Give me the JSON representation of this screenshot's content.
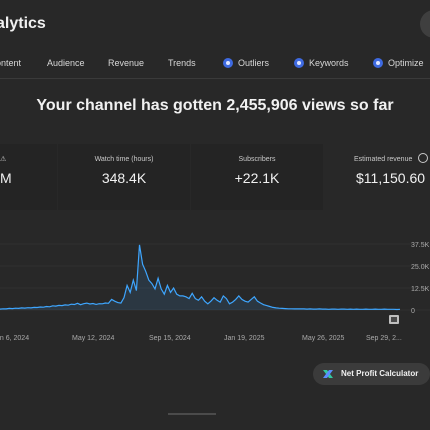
{
  "header": {
    "title": "alytics"
  },
  "tabs": [
    {
      "label": "ontent",
      "icon": ""
    },
    {
      "label": "Audience",
      "icon": ""
    },
    {
      "label": "Revenue",
      "icon": ""
    },
    {
      "label": "Trends",
      "icon": ""
    },
    {
      "label": "Outliers",
      "icon": "extension-dot-icon"
    },
    {
      "label": "Keywords",
      "icon": "extension-dot-icon"
    },
    {
      "label": "Optimize",
      "icon": "extension-dot-icon"
    }
  ],
  "headline": "Your channel has gotten 2,455,906 views so far",
  "metrics": [
    {
      "label": "",
      "value": "M"
    },
    {
      "label": "Watch time (hours)",
      "value": "348.4K"
    },
    {
      "label": "Subscribers",
      "value": "+22.1K"
    },
    {
      "label": "Estimated revenue",
      "value": "$11,150.60"
    }
  ],
  "chart_data": {
    "type": "line",
    "x_labels": [
      "an 6, 2024",
      "May 12, 2024",
      "Sep 15, 2024",
      "Jan 19, 2025",
      "May 26, 2025",
      "Sep 29, 2..."
    ],
    "y_ticks": [
      "37.5K",
      "25.0K",
      "12.5K",
      "0"
    ],
    "ylim": [
      0,
      37500
    ],
    "color": "#3ea6ff",
    "values": [
      500,
      700,
      600,
      900,
      800,
      1000,
      900,
      1200,
      1100,
      1300,
      1200,
      1500,
      1400,
      1700,
      1600,
      2000,
      1800,
      2400,
      2200,
      2600,
      2500,
      2900,
      2700,
      3300,
      3100,
      3800,
      3000,
      3600,
      3900,
      3400,
      3700,
      3200,
      3600,
      3500,
      4000,
      3800,
      6000,
      5000,
      4200,
      3900,
      7000,
      14000,
      10000,
      17000,
      11000,
      37000,
      26000,
      22000,
      17000,
      15000,
      12000,
      18000,
      12000,
      9000,
      14000,
      10000,
      12500,
      9000,
      8000,
      8000,
      7500,
      6500,
      9500,
      6500,
      5500,
      7500,
      5000,
      3500,
      5000,
      7000,
      5500,
      4500,
      8000,
      6500,
      3500,
      4500,
      6000,
      8000,
      6000,
      5000,
      4500,
      6000,
      7500,
      5000,
      4000,
      3000,
      2500,
      2000,
      1500,
      1200,
      1000,
      900,
      800,
      700,
      700,
      600,
      600,
      700,
      600,
      500,
      600,
      500,
      500,
      600,
      500,
      500,
      400,
      500,
      500,
      400,
      500,
      500,
      400,
      500,
      400,
      500,
      400,
      400,
      500,
      400,
      400,
      500,
      400,
      400,
      500,
      400,
      400,
      400,
      300,
      400
    ]
  },
  "actions": {
    "net_profit_label": "Net Profit Calculator"
  },
  "colors": {
    "accent": "#3ea6ff",
    "extension": "#3e6ae1",
    "background": "#282828"
  }
}
